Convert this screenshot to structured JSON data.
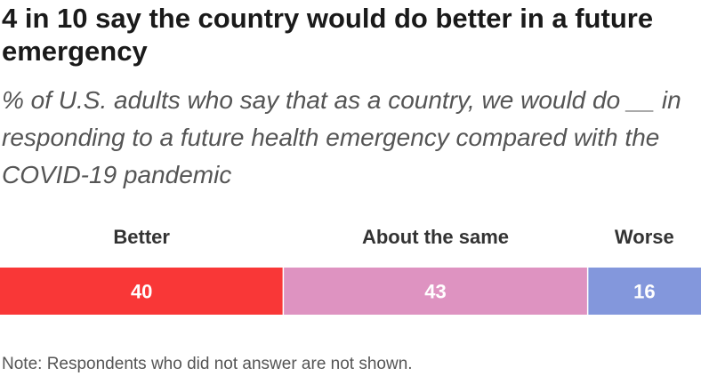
{
  "chart_data": {
    "type": "bar",
    "orientation": "horizontal-stacked",
    "title": "4 in 10 say the country would do better in a future emergency",
    "subtitle": "% of U.S. adults who say that as a country, we would do __ in responding to a future health emergency compared with the COVID-19 pandemic",
    "categories": [
      "Better",
      "About the same",
      "Worse"
    ],
    "values": [
      40,
      43,
      16
    ],
    "colors": [
      "#f93737",
      "#de93c1",
      "#8397dc"
    ],
    "value_labels": [
      "40",
      "43",
      "16"
    ],
    "xlim": [
      0,
      99
    ],
    "grid": false,
    "legend": "none",
    "note": "Note: Respondents who did not answer are not shown."
  }
}
